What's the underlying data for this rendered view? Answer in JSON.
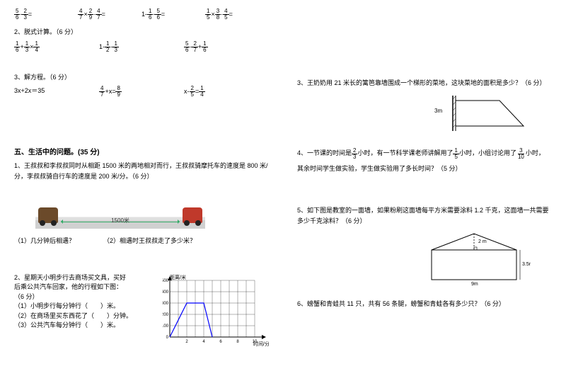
{
  "left": {
    "r1": {
      "a_num": "5",
      "a_den": "6",
      "a_op": "-",
      "a2_num": "2",
      "a2_den": "3",
      "a_eq": "=",
      "b_num": "4",
      "b_den": "7",
      "b_op": "×",
      "b2_num": "2",
      "b2_den": "9",
      "b3_num": "4",
      "b3_den": "7",
      "b_eq": "=",
      "c_pre": "1-",
      "c_num": "1",
      "c_den": "6",
      "c_op": "-",
      "c2_num": "5",
      "c2_den": "6",
      "c_eq": "=",
      "d_num": "1",
      "d_den": "5",
      "d_op": "×",
      "d2_num": "3",
      "d2_den": "8",
      "d3_num": "4",
      "d3_den": "5",
      "d_eq": "="
    },
    "t1": "2、脱式计算。（6 分）",
    "r2": {
      "a_num": "1",
      "a_den": "6",
      "a_op": "+",
      "a2_num": "1",
      "a2_den": "3",
      "a_op2": "×",
      "a3_num": "1",
      "a3_den": "4",
      "b_pre": "1-",
      "b_num": "1",
      "b_den": "2",
      "b_op": "-",
      "b2_num": "1",
      "b2_den": "3",
      "c_num": "5",
      "c_den": "6",
      "c_op": "-",
      "c2_num": "2",
      "c2_den": "7",
      "c_op2": "+",
      "c3_num": "1",
      "c3_den": "6"
    },
    "t2": "3、解方程。（6 分）",
    "r3": {
      "a": "3x+2x＝35",
      "b_num": "4",
      "b_den": "7",
      "b_op": "+x=",
      "b2_num": "8",
      "b2_den": "9",
      "c_pre": "x-",
      "c_num": "2",
      "c_den": "5",
      "c_eq": "=",
      "c2_num": "1",
      "c2_den": "4"
    },
    "section5": "五、生活中的问题。(35 分)",
    "q1": "1、王叔叔和李叔叔同时从相距 1500 米的两地相对而行，王叔叔骑摩托车的速度是 800 米/分，李叔叔骑自行车的速度是 200 米/分。（6 分）",
    "dist": "1500米",
    "q1a": "（1）几分钟后相遇？",
    "q1b": "（2）相遇时王叔叔走了多少米？",
    "q2_l1": "2、星期天小明步行去商场买文具，买好",
    "q2_l2": "后乘公共汽车回家，他的行程如下图：",
    "q2_l3": "（6 分）",
    "q2_l4": "（1）小明步行每分钟行（　　）米。",
    "q2_l5": "（2）在商场里买东西花了（　　）分钟。",
    "q2_l6": "（3）公共汽车每分钟行（　　）米。",
    "chart": {
      "ylabel": "距离/米",
      "xlabel": "时间/分",
      "yticks": [
        "0",
        "100",
        "200",
        "300",
        "400",
        "500"
      ],
      "xticks": [
        "",
        "2",
        "",
        "4",
        "",
        "6",
        "",
        "8",
        "",
        "10"
      ],
      "line_points": "10,90 34,42 58,42 70,90",
      "line_color": "#0000ff",
      "grid_color": "#000000"
    }
  },
  "right": {
    "q3": "3、王奶奶用 21 米长的篱笆靠墙围成一个梯形的菜地，这块菜地的面积是多少？（6 分）",
    "q3_label": "3m",
    "q4_p1": "4、一节课的时间是",
    "q4_f1_num": "2",
    "q4_f1_den": "3",
    "q4_p2": "小时，有一节科学课老师讲解用了",
    "q4_f2_num": "1",
    "q4_f2_den": "5",
    "q4_p3": "小时，小组讨论用了",
    "q4_f3_num": "3",
    "q4_f3_den": "10",
    "q4_p4": "小时，",
    "q4_l2": "其余时间学生做实验，学生做实验用了多长时间？（5 分）",
    "q5": "5、如下图是教室的一面墙，如果粉刷这面墙每平方米需要涂料 1.2 千克，这面墙一共需要多少千克涂料？（6 分）",
    "q5_w": "9m",
    "q5_h1": "2 m",
    "q5_h2": "3.5m",
    "q6": "6、螃蟹和青蛙共 11 只，共有 56 条腿，螃蟹和青蛙各有多少只？（6 分）"
  }
}
